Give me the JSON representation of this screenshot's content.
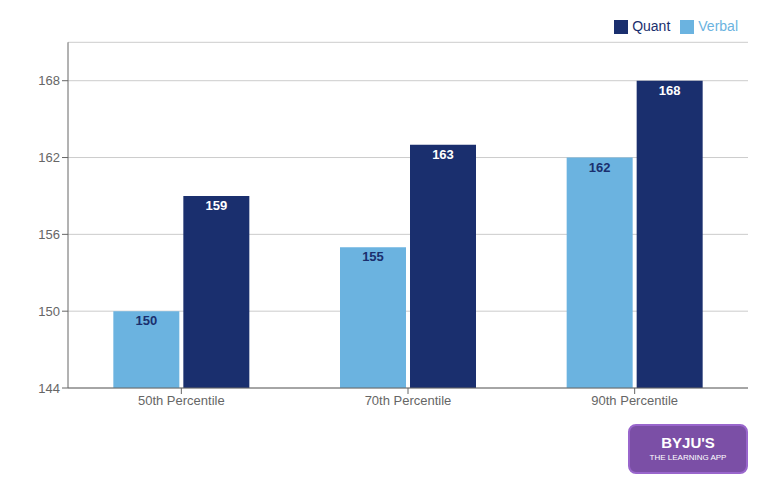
{
  "chart_data": {
    "type": "bar",
    "categories": [
      "50th Percentile",
      "70th Percentile",
      "90th Percentile"
    ],
    "series": [
      {
        "name": "Verbal",
        "color": "#6bb3e0",
        "values": [
          150,
          155,
          162
        ]
      },
      {
        "name": "Quant",
        "color": "#1a2f6e",
        "values": [
          159,
          163,
          168
        ]
      }
    ],
    "ylim": [
      144,
      171
    ],
    "yticks": [
      144,
      150,
      156,
      162,
      168
    ],
    "grid": true,
    "legend": "upper right",
    "data_labels": true,
    "annotations": [
      "BYJU'S",
      "THE LEARNING APP"
    ]
  }
}
